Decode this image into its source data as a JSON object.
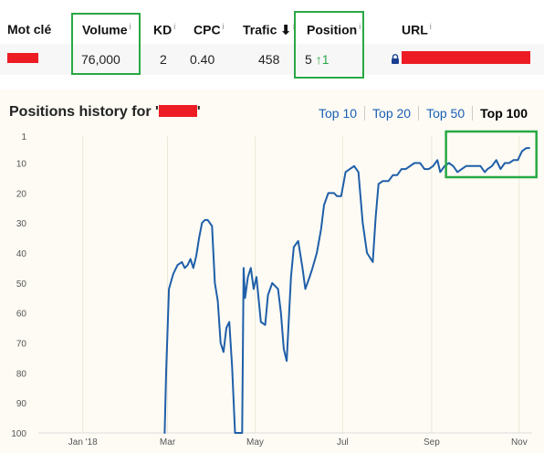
{
  "table": {
    "headers": {
      "keyword": "Mot clé",
      "volume": "Volume",
      "kd": "KD",
      "cpc": "CPC",
      "traffic": "Trafic",
      "traffic_sort_icon": "arrow-down-icon",
      "position": "Position",
      "url": "URL",
      "info_mark": "i"
    },
    "row": {
      "keyword": "",
      "volume": "76,000",
      "kd": "2",
      "cpc": "0.40",
      "traffic": "458",
      "position": "5",
      "position_change": "↑1",
      "url": ""
    },
    "colors": {
      "highlight": "#2aa844",
      "redaction": "#ed1c24"
    }
  },
  "chart_panel": {
    "title_prefix": "Positions history for '",
    "title_suffix": "'",
    "filters": [
      "Top 10",
      "Top 20",
      "Top 50",
      "Top 100"
    ],
    "active_filter": "Top 100"
  },
  "chart_data": {
    "type": "line",
    "title": "Positions history for '█'",
    "x_tick_labels": [
      "Jan '18",
      "Mar",
      "May",
      "Jul",
      "Sep",
      "Nov"
    ],
    "x_range": [
      "2017-12-01",
      "2018-11-10"
    ],
    "y_tick_labels": [
      "1",
      "10",
      "20",
      "30",
      "40",
      "50",
      "60",
      "70",
      "80",
      "90",
      "100"
    ],
    "y_range": [
      1,
      100
    ],
    "y_inverted": true,
    "grid": "vertical",
    "line_color": "#1f5fa9",
    "series": [
      {
        "points": [
          [
            "2018-02-27",
            100
          ],
          [
            "2018-02-28",
            80
          ],
          [
            "2018-03-02",
            52
          ],
          [
            "2018-03-05",
            47
          ],
          [
            "2018-03-08",
            44
          ],
          [
            "2018-03-11",
            43
          ],
          [
            "2018-03-13",
            45
          ],
          [
            "2018-03-15",
            44
          ],
          [
            "2018-03-17",
            42
          ],
          [
            "2018-03-19",
            45
          ],
          [
            "2018-03-21",
            41
          ],
          [
            "2018-03-23",
            35
          ],
          [
            "2018-03-25",
            30
          ],
          [
            "2018-03-27",
            29
          ],
          [
            "2018-03-29",
            29
          ],
          [
            "2018-04-01",
            31
          ],
          [
            "2018-04-03",
            50
          ],
          [
            "2018-04-05",
            56
          ],
          [
            "2018-04-07",
            70
          ],
          [
            "2018-04-09",
            73
          ],
          [
            "2018-04-11",
            65
          ],
          [
            "2018-04-13",
            63
          ],
          [
            "2018-04-15",
            78
          ],
          [
            "2018-04-17",
            100
          ],
          [
            "2018-04-22",
            100
          ],
          [
            "2018-04-23",
            45
          ],
          [
            "2018-04-24",
            55
          ],
          [
            "2018-04-26",
            48
          ],
          [
            "2018-04-28",
            45
          ],
          [
            "2018-04-30",
            52
          ],
          [
            "2018-05-02",
            48
          ],
          [
            "2018-05-05",
            63
          ],
          [
            "2018-05-08",
            64
          ],
          [
            "2018-05-10",
            54
          ],
          [
            "2018-05-13",
            50
          ],
          [
            "2018-05-17",
            52
          ],
          [
            "2018-05-19",
            60
          ],
          [
            "2018-05-21",
            72
          ],
          [
            "2018-05-23",
            76
          ],
          [
            "2018-05-26",
            48
          ],
          [
            "2018-05-28",
            38
          ],
          [
            "2018-05-31",
            36
          ],
          [
            "2018-06-03",
            45
          ],
          [
            "2018-06-05",
            52
          ],
          [
            "2018-06-08",
            48
          ],
          [
            "2018-06-10",
            45
          ],
          [
            "2018-06-13",
            40
          ],
          [
            "2018-06-16",
            32
          ],
          [
            "2018-06-18",
            24
          ],
          [
            "2018-06-21",
            20
          ],
          [
            "2018-06-25",
            20
          ],
          [
            "2018-06-27",
            21
          ],
          [
            "2018-06-30",
            21
          ],
          [
            "2018-07-03",
            13
          ],
          [
            "2018-07-06",
            12
          ],
          [
            "2018-07-09",
            11
          ],
          [
            "2018-07-12",
            13
          ],
          [
            "2018-07-15",
            30
          ],
          [
            "2018-07-18",
            40
          ],
          [
            "2018-07-22",
            43
          ],
          [
            "2018-07-24",
            28
          ],
          [
            "2018-07-26",
            17
          ],
          [
            "2018-07-29",
            16
          ],
          [
            "2018-08-02",
            16
          ],
          [
            "2018-08-05",
            14
          ],
          [
            "2018-08-08",
            14
          ],
          [
            "2018-08-11",
            12
          ],
          [
            "2018-08-14",
            12
          ],
          [
            "2018-08-17",
            11
          ],
          [
            "2018-08-20",
            10
          ],
          [
            "2018-08-24",
            10
          ],
          [
            "2018-08-27",
            12
          ],
          [
            "2018-08-30",
            12
          ],
          [
            "2018-09-02",
            11
          ],
          [
            "2018-09-05",
            9
          ],
          [
            "2018-09-07",
            13
          ],
          [
            "2018-09-10",
            11
          ],
          [
            "2018-09-13",
            10
          ],
          [
            "2018-09-16",
            11
          ],
          [
            "2018-09-19",
            13
          ],
          [
            "2018-09-22",
            12
          ],
          [
            "2018-09-25",
            11
          ],
          [
            "2018-09-28",
            11
          ],
          [
            "2018-10-02",
            11
          ],
          [
            "2018-10-05",
            11
          ],
          [
            "2018-10-08",
            13
          ],
          [
            "2018-10-10",
            12
          ],
          [
            "2018-10-13",
            11
          ],
          [
            "2018-10-16",
            9
          ],
          [
            "2018-10-19",
            12
          ],
          [
            "2018-10-22",
            10
          ],
          [
            "2018-10-25",
            10
          ],
          [
            "2018-10-28",
            9
          ],
          [
            "2018-10-31",
            9
          ],
          [
            "2018-11-03",
            6
          ],
          [
            "2018-11-06",
            5
          ],
          [
            "2018-11-08",
            5
          ]
        ]
      }
    ]
  }
}
